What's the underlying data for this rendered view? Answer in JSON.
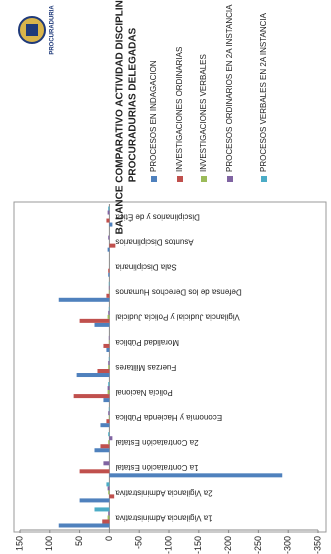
{
  "logo_text": "PROCURADURIA",
  "chart_data": {
    "type": "bar",
    "title": "BALANCE COMPARATIVO ACTIVIDAD DISCIPLINARIA",
    "subtitle": "PROCURADURIAS DELEGADAS",
    "categories": [
      "1a Vigilancia Administrativa",
      "2a Vigilancia Administrativa",
      "1a Contratación Estatal",
      "2a Contratación Estatal",
      "Economía y Hacienda Pública",
      "Policía Nacional",
      "Fuerzas Militares",
      "Moralidad Pública",
      "Vigilancia Judicial y Policía Judicial",
      "Defensa de los Derechos Humanos",
      "Sala Disciplinaria",
      "Asuntos Disciplinarios",
      "Disciplinarios y de Ética"
    ],
    "series": [
      {
        "name": "PROCESOS EN INDAGACION",
        "color": "#4f81bd",
        "values": [
          85,
          50,
          -290,
          25,
          15,
          10,
          55,
          5,
          25,
          85,
          2,
          3,
          -5
        ]
      },
      {
        "name": "INVESTIGACIONES ORDINARIAS",
        "color": "#c0504d",
        "values": [
          12,
          -8,
          50,
          15,
          5,
          60,
          20,
          10,
          50,
          5,
          2,
          -10,
          5
        ]
      },
      {
        "name": "INVESTIGACIONES VERBALES",
        "color": "#9bbb59",
        "values": [
          3,
          2,
          0,
          2,
          1,
          3,
          2,
          1,
          3,
          1,
          0,
          0,
          0
        ]
      },
      {
        "name": "PROCESOS ORDINARIOS EN 2A INSTANCIA",
        "color": "#8064a2",
        "values": [
          2,
          3,
          10,
          -5,
          2,
          3,
          2,
          1,
          2,
          1,
          0,
          2,
          3
        ]
      },
      {
        "name": "PROCESOS VERBALES EN 2A INSTANCIA",
        "color": "#4bacc6",
        "values": [
          25,
          5,
          0,
          2,
          1,
          2,
          1,
          0,
          1,
          1,
          0,
          0,
          2
        ]
      }
    ],
    "ylim": [
      -350,
      150
    ],
    "yticks": [
      -350,
      -300,
      -250,
      -200,
      -150,
      -100,
      -50,
      0,
      50,
      100,
      150
    ],
    "grid": false
  }
}
